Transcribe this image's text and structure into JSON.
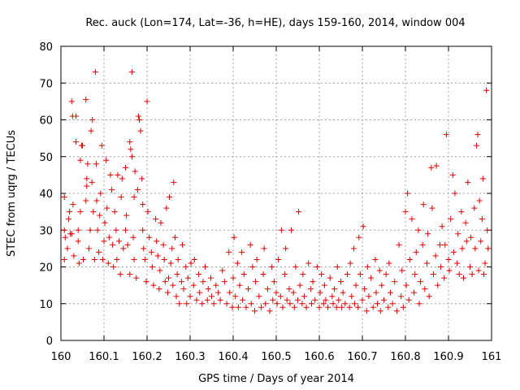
{
  "chart_data": {
    "type": "scatter",
    "title": "Rec. auck (Lon=174, Lat=-36, h=HE), days 159-160, 2014, window 004",
    "xlabel": "GPS time / Days of year 2014",
    "ylabel": "STEC from uqrg / TECUs",
    "xlim": [
      160,
      161
    ],
    "ylim": [
      0,
      80
    ],
    "xticks": [
      "160",
      "160.1",
      "160.2",
      "160.3",
      "160.4",
      "160.5",
      "160.6",
      "160.7",
      "160.8",
      "160.9",
      "161"
    ],
    "yticks": [
      "0",
      "10",
      "20",
      "30",
      "40",
      "50",
      "60",
      "70",
      "80"
    ],
    "grid": true,
    "marker": "plus",
    "color": "#e00000",
    "series": [
      {
        "points": [
          [
            160.008,
            39
          ],
          [
            160.008,
            30
          ],
          [
            160.008,
            22
          ],
          [
            160.01,
            28
          ],
          [
            160.015,
            25
          ],
          [
            160.018,
            33
          ],
          [
            160.02,
            35
          ],
          [
            160.022,
            29
          ],
          [
            160.025,
            29
          ],
          [
            160.028,
            37
          ],
          [
            160.025,
            65
          ],
          [
            160.027,
            61
          ],
          [
            160.03,
            23
          ],
          [
            160.035,
            61
          ],
          [
            160.035,
            54
          ],
          [
            160.04,
            27
          ],
          [
            160.04,
            30
          ],
          [
            160.042,
            21
          ],
          [
            160.045,
            35
          ],
          [
            160.045,
            49
          ],
          [
            160.048,
            53
          ],
          [
            160.05,
            53
          ],
          [
            160.052,
            22
          ],
          [
            160.058,
            65.5
          ],
          [
            160.058,
            38
          ],
          [
            160.06,
            42
          ],
          [
            160.06,
            44
          ],
          [
            160.062,
            48
          ],
          [
            160.065,
            25
          ],
          [
            160.068,
            30
          ],
          [
            160.07,
            57
          ],
          [
            160.072,
            43
          ],
          [
            160.073,
            60
          ],
          [
            160.075,
            35
          ],
          [
            160.078,
            22
          ],
          [
            160.08,
            73
          ],
          [
            160.082,
            48
          ],
          [
            160.083,
            38
          ],
          [
            160.085,
            30
          ],
          [
            160.088,
            24
          ],
          [
            160.09,
            34
          ],
          [
            160.092,
            40
          ],
          [
            160.095,
            53
          ],
          [
            160.097,
            22
          ],
          [
            160.1,
            27
          ],
          [
            160.102,
            32
          ],
          [
            160.105,
            49
          ],
          [
            160.107,
            36
          ],
          [
            160.11,
            21
          ],
          [
            160.112,
            28
          ],
          [
            160.115,
            45
          ],
          [
            160.118,
            41
          ],
          [
            160.12,
            26
          ],
          [
            160.122,
            20
          ],
          [
            160.125,
            35
          ],
          [
            160.128,
            30
          ],
          [
            160.13,
            22
          ],
          [
            160.132,
            45
          ],
          [
            160.135,
            27
          ],
          [
            160.138,
            18
          ],
          [
            160.14,
            39
          ],
          [
            160.142,
            44
          ],
          [
            160.145,
            25
          ],
          [
            160.15,
            30
          ],
          [
            160.15,
            47
          ],
          [
            160.152,
            34
          ],
          [
            160.155,
            26
          ],
          [
            160.16,
            18
          ],
          [
            160.16,
            54
          ],
          [
            160.162,
            52
          ],
          [
            160.165,
            50
          ],
          [
            160.165,
            73
          ],
          [
            160.168,
            28
          ],
          [
            160.17,
            22
          ],
          [
            160.17,
            39
          ],
          [
            160.172,
            46
          ],
          [
            160.175,
            17
          ],
          [
            160.178,
            41
          ],
          [
            160.18,
            61
          ],
          [
            160.182,
            60
          ],
          [
            160.185,
            57
          ],
          [
            160.188,
            44
          ],
          [
            160.19,
            37
          ],
          [
            160.19,
            30
          ],
          [
            160.192,
            25
          ],
          [
            160.195,
            22
          ],
          [
            160.198,
            16
          ],
          [
            160.2,
            65
          ],
          [
            160.202,
            35
          ],
          [
            160.205,
            28
          ],
          [
            160.21,
            24
          ],
          [
            160.212,
            20
          ],
          [
            160.215,
            15
          ],
          [
            160.22,
            33
          ],
          [
            160.222,
            27
          ],
          [
            160.225,
            23
          ],
          [
            160.228,
            14
          ],
          [
            160.23,
            19
          ],
          [
            160.232,
            32
          ],
          [
            160.238,
            26
          ],
          [
            160.24,
            22
          ],
          [
            160.242,
            16
          ],
          [
            160.245,
            36
          ],
          [
            160.248,
            13
          ],
          [
            160.25,
            17
          ],
          [
            160.252,
            39
          ],
          [
            160.255,
            21
          ],
          [
            160.258,
            25
          ],
          [
            160.26,
            15
          ],
          [
            160.262,
            43
          ],
          [
            160.265,
            28
          ],
          [
            160.268,
            12
          ],
          [
            160.27,
            18
          ],
          [
            160.272,
            22
          ],
          [
            160.275,
            10
          ],
          [
            160.28,
            16
          ],
          [
            160.282,
            26
          ],
          [
            160.285,
            14
          ],
          [
            160.29,
            20
          ],
          [
            160.292,
            10
          ],
          [
            160.295,
            17
          ],
          [
            160.3,
            12
          ],
          [
            160.302,
            21
          ],
          [
            160.308,
            15
          ],
          [
            160.31,
            22
          ],
          [
            160.315,
            11
          ],
          [
            160.32,
            18
          ],
          [
            160.322,
            13
          ],
          [
            160.328,
            10
          ],
          [
            160.33,
            16
          ],
          [
            160.335,
            20
          ],
          [
            160.34,
            11
          ],
          [
            160.342,
            14
          ],
          [
            160.348,
            17
          ],
          [
            160.35,
            12
          ],
          [
            160.355,
            10
          ],
          [
            160.36,
            15
          ],
          [
            160.365,
            13
          ],
          [
            160.37,
            11
          ],
          [
            160.375,
            19
          ],
          [
            160.38,
            16
          ],
          [
            160.385,
            10
          ],
          [
            160.39,
            24
          ],
          [
            160.392,
            13
          ],
          [
            160.398,
            9
          ],
          [
            160.4,
            17
          ],
          [
            160.402,
            28
          ],
          [
            160.405,
            12
          ],
          [
            160.41,
            21
          ],
          [
            160.412,
            9
          ],
          [
            160.415,
            15
          ],
          [
            160.42,
            24
          ],
          [
            160.422,
            11
          ],
          [
            160.425,
            18
          ],
          [
            160.43,
            9
          ],
          [
            160.435,
            14
          ],
          [
            160.44,
            26
          ],
          [
            160.442,
            10
          ],
          [
            160.445,
            20
          ],
          [
            160.45,
            8
          ],
          [
            160.452,
            16
          ],
          [
            160.455,
            22
          ],
          [
            160.46,
            12
          ],
          [
            160.465,
            9
          ],
          [
            160.47,
            18
          ],
          [
            160.472,
            25
          ],
          [
            160.475,
            10
          ],
          [
            160.48,
            14
          ],
          [
            160.485,
            8
          ],
          [
            160.49,
            20
          ],
          [
            160.492,
            11
          ],
          [
            160.495,
            16
          ],
          [
            160.5,
            13
          ],
          [
            160.502,
            10
          ],
          [
            160.505,
            22
          ],
          [
            160.51,
            12
          ],
          [
            160.512,
            30
          ],
          [
            160.515,
            9
          ],
          [
            160.52,
            18
          ],
          [
            160.522,
            25
          ],
          [
            160.525,
            11
          ],
          [
            160.53,
            14
          ],
          [
            160.532,
            10
          ],
          [
            160.535,
            30
          ],
          [
            160.54,
            13
          ],
          [
            160.542,
            9
          ],
          [
            160.545,
            20
          ],
          [
            160.55,
            11
          ],
          [
            160.552,
            35
          ],
          [
            160.555,
            15
          ],
          [
            160.56,
            10
          ],
          [
            160.562,
            18
          ],
          [
            160.565,
            12
          ],
          [
            160.57,
            9
          ],
          [
            160.575,
            21
          ],
          [
            160.58,
            14
          ],
          [
            160.582,
            10
          ],
          [
            160.585,
            16
          ],
          [
            160.59,
            11
          ],
          [
            160.595,
            20
          ],
          [
            160.6,
            9
          ],
          [
            160.602,
            13
          ],
          [
            160.605,
            18
          ],
          [
            160.61,
            10
          ],
          [
            160.612,
            15
          ],
          [
            160.615,
            11
          ],
          [
            160.62,
            9
          ],
          [
            160.625,
            17
          ],
          [
            160.63,
            12
          ],
          [
            160.632,
            10
          ],
          [
            160.635,
            14
          ],
          [
            160.64,
            9
          ],
          [
            160.642,
            20
          ],
          [
            160.645,
            11
          ],
          [
            160.65,
            16
          ],
          [
            160.652,
            9
          ],
          [
            160.655,
            13
          ],
          [
            160.66,
            10
          ],
          [
            160.665,
            18
          ],
          [
            160.67,
            9
          ],
          [
            160.672,
            21
          ],
          [
            160.675,
            12
          ],
          [
            160.68,
            25
          ],
          [
            160.682,
            10
          ],
          [
            160.685,
            15
          ],
          [
            160.69,
            9
          ],
          [
            160.692,
            28
          ],
          [
            160.695,
            18
          ],
          [
            160.7,
            11
          ],
          [
            160.702,
            31
          ],
          [
            160.705,
            14
          ],
          [
            160.71,
            8
          ],
          [
            160.712,
            20
          ],
          [
            160.715,
            12
          ],
          [
            160.72,
            17
          ],
          [
            160.725,
            9
          ],
          [
            160.73,
            22
          ],
          [
            160.732,
            13
          ],
          [
            160.735,
            10
          ],
          [
            160.74,
            19
          ],
          [
            160.742,
            8
          ],
          [
            160.745,
            15
          ],
          [
            160.75,
            11
          ],
          [
            160.755,
            18
          ],
          [
            160.76,
            9
          ],
          [
            160.762,
            21
          ],
          [
            160.765,
            13
          ],
          [
            160.77,
            10
          ],
          [
            160.775,
            16
          ],
          [
            160.78,
            8
          ],
          [
            160.785,
            26
          ],
          [
            160.79,
            12
          ],
          [
            160.792,
            19
          ],
          [
            160.795,
            9
          ],
          [
            160.8,
            35
          ],
          [
            160.802,
            15
          ],
          [
            160.805,
            40
          ],
          [
            160.808,
            11
          ],
          [
            160.81,
            22
          ],
          [
            160.815,
            33
          ],
          [
            160.82,
            13
          ],
          [
            160.822,
            18
          ],
          [
            160.825,
            24
          ],
          [
            160.83,
            30
          ],
          [
            160.832,
            10
          ],
          [
            160.835,
            16
          ],
          [
            160.84,
            26
          ],
          [
            160.842,
            37
          ],
          [
            160.845,
            14
          ],
          [
            160.85,
            21
          ],
          [
            160.852,
            29
          ],
          [
            160.855,
            12
          ],
          [
            160.86,
            47
          ],
          [
            160.862,
            36
          ],
          [
            160.865,
            18
          ],
          [
            160.87,
            23
          ],
          [
            160.872,
            47.5
          ],
          [
            160.875,
            15
          ],
          [
            160.88,
            26
          ],
          [
            160.882,
            20
          ],
          [
            160.885,
            31
          ],
          [
            160.89,
            17
          ],
          [
            160.892,
            26
          ],
          [
            160.895,
            56
          ],
          [
            160.9,
            22
          ],
          [
            160.902,
            19
          ],
          [
            160.905,
            33
          ],
          [
            160.91,
            45
          ],
          [
            160.912,
            24
          ],
          [
            160.915,
            40
          ],
          [
            160.92,
            21
          ],
          [
            160.922,
            29
          ],
          [
            160.925,
            18
          ],
          [
            160.93,
            35
          ],
          [
            160.932,
            25
          ],
          [
            160.935,
            17
          ],
          [
            160.94,
            32
          ],
          [
            160.942,
            27
          ],
          [
            160.945,
            43
          ],
          [
            160.95,
            20
          ],
          [
            160.952,
            28
          ],
          [
            160.955,
            18
          ],
          [
            160.96,
            36
          ],
          [
            160.962,
            25
          ],
          [
            160.965,
            53
          ],
          [
            160.968,
            56
          ],
          [
            160.97,
            19
          ],
          [
            160.972,
            38
          ],
          [
            160.975,
            27
          ],
          [
            160.978,
            33
          ],
          [
            160.98,
            44
          ],
          [
            160.982,
            18
          ],
          [
            160.985,
            21
          ],
          [
            160.988,
            68
          ],
          [
            160.99,
            30
          ],
          [
            160.992,
            25
          ]
        ]
      }
    ]
  }
}
